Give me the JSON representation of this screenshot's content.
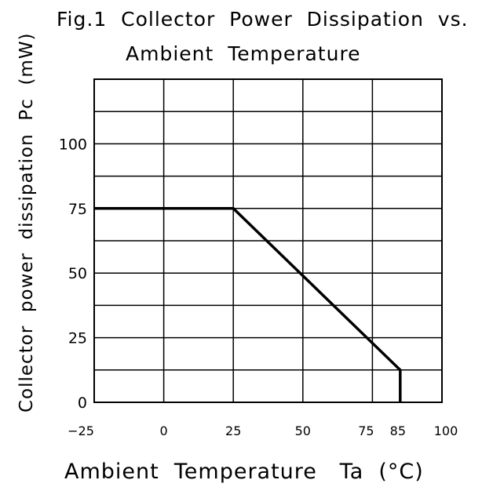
{
  "chart_data": {
    "type": "line",
    "title_line1": "Fig.1  Collector  Power  Dissipation  vs.",
    "title_line2": "Ambient  Temperature",
    "xlabel": "Ambient  Temperature   Ta  (°C)",
    "ylabel": "Collector  power  dissipation  Pc  (mW)",
    "xlim": [
      -25,
      100
    ],
    "ylim": [
      0,
      125
    ],
    "x_ticks": [
      {
        "value": -25,
        "label": "−25"
      },
      {
        "value": 0,
        "label": "0"
      },
      {
        "value": 25,
        "label": "25"
      },
      {
        "value": 50,
        "label": "50"
      },
      {
        "value": 75,
        "label": "75"
      },
      {
        "value": 85,
        "label": "85"
      },
      {
        "value": 100,
        "label": "100"
      }
    ],
    "y_ticks": [
      {
        "value": 0,
        "label": "0"
      },
      {
        "value": 25,
        "label": "25"
      },
      {
        "value": 50,
        "label": "50"
      },
      {
        "value": 75,
        "label": "75"
      },
      {
        "value": 100,
        "label": "100"
      }
    ],
    "grid": true,
    "x_grid_step": 25,
    "y_grid_step": 12.5,
    "series": [
      {
        "points": [
          [
            -25,
            75
          ],
          [
            25,
            75
          ],
          [
            85,
            12.5
          ],
          [
            85,
            0
          ]
        ]
      }
    ]
  }
}
